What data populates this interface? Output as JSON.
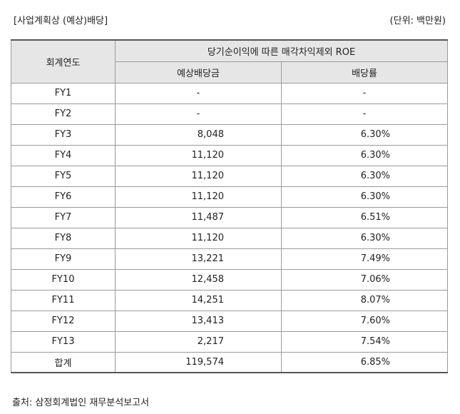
{
  "caption": {
    "left": "[사업계획상 (예상)배당]",
    "right": "(단위: 백만원)"
  },
  "table": {
    "header": {
      "year_col": "회계연도",
      "group": "당기순이익에 따른 매각차익제외 ROE",
      "col_dividend": "예상배당금",
      "col_ratio": "배당률"
    },
    "rows": [
      {
        "year": "FY1",
        "dividend": "-",
        "ratio": "-"
      },
      {
        "year": "FY2",
        "dividend": "-",
        "ratio": "-"
      },
      {
        "year": "FY3",
        "dividend": "8,048",
        "ratio": "6.30%"
      },
      {
        "year": "FY4",
        "dividend": "11,120",
        "ratio": "6.30%"
      },
      {
        "year": "FY5",
        "dividend": "11,120",
        "ratio": "6.30%"
      },
      {
        "year": "FY6",
        "dividend": "11,120",
        "ratio": "6.30%"
      },
      {
        "year": "FY7",
        "dividend": "11,487",
        "ratio": "6.51%"
      },
      {
        "year": "FY8",
        "dividend": "11,120",
        "ratio": "6.30%"
      },
      {
        "year": "FY9",
        "dividend": "13,221",
        "ratio": "7.49%"
      },
      {
        "year": "FY10",
        "dividend": "12,458",
        "ratio": "7.06%"
      },
      {
        "year": "FY11",
        "dividend": "14,251",
        "ratio": "8.07%"
      },
      {
        "year": "FY12",
        "dividend": "13,413",
        "ratio": "7.60%"
      },
      {
        "year": "FY13",
        "dividend": "2,217",
        "ratio": "7.54%"
      },
      {
        "year": "합계",
        "dividend": "119,574",
        "ratio": "6.85%"
      }
    ]
  },
  "footer": {
    "source": "출처: 삼정회계법인 재무분석보고서"
  }
}
